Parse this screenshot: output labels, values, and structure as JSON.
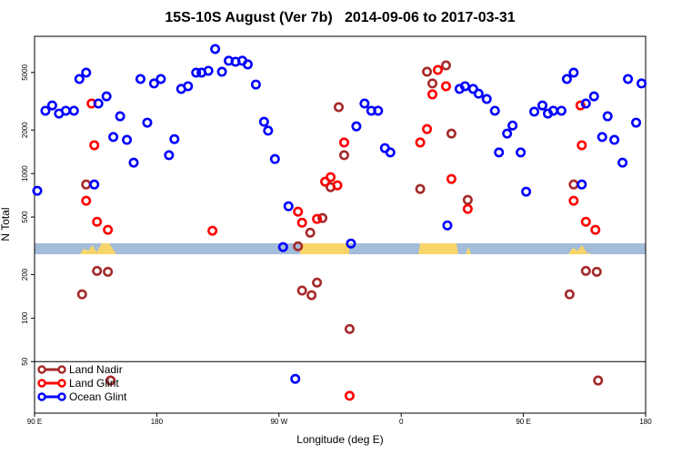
{
  "chart_data": {
    "type": "scatter",
    "title": "15S-10S August (Ver 7b)   2014-09-06 to 2017-03-31",
    "xlabel": "Longitude (deg E)",
    "ylabel": "N Total",
    "xlim": [
      90,
      540
    ],
    "xticks": [
      {
        "value": 90,
        "label": "90 E"
      },
      180,
      {
        "value": 270,
        "label": "90 W"
      },
      {
        "value": 360,
        "label": "0"
      },
      {
        "value": 450,
        "label": "90 E"
      },
      {
        "value": 540,
        "label": "180"
      }
    ],
    "ylim": [
      22,
      8900
    ],
    "yscale": "log",
    "yticks": [
      50,
      100,
      200,
      500,
      1000,
      2000,
      5000
    ],
    "legend": "lower left",
    "series": [
      {
        "name": "Land Nadir",
        "color": "#a52a2a",
        "x": [
          125,
          128,
          136,
          144,
          146,
          284,
          287,
          293,
          294,
          298,
          302,
          308,
          314,
          318,
          322,
          374,
          379,
          383,
          393,
          397,
          409,
          484,
          487,
          496,
          504,
          505
        ],
        "values": [
          146,
          840,
          212,
          209,
          37,
          314,
          155,
          390,
          144,
          176,
          492,
          805,
          2880,
          1340,
          84,
          782,
          5060,
          4200,
          5600,
          1890,
          657,
          146,
          840,
          212,
          209,
          37
        ]
      },
      {
        "name": "Land Glint",
        "color": "#ff0000",
        "x": [
          128,
          132,
          134,
          136,
          144,
          221,
          284,
          287,
          298,
          304,
          308,
          313,
          318,
          322,
          374,
          379,
          383,
          387,
          393,
          397,
          409,
          487,
          492,
          493,
          496,
          503
        ],
        "values": [
          648,
          3050,
          1570,
          464,
          408,
          402,
          545,
          457,
          485,
          878,
          944,
          829,
          1640,
          29,
          1640,
          2030,
          3530,
          5210,
          4020,
          917,
          569,
          648,
          2960,
          1570,
          464,
          408
        ]
      },
      {
        "name": "Ocean Glint",
        "color": "#0000ff",
        "x": [
          92,
          98,
          103,
          108,
          113,
          119,
          123,
          128,
          134,
          137,
          143,
          148,
          153,
          158,
          163,
          168,
          173,
          178,
          183,
          189,
          193,
          198,
          203,
          209,
          213,
          218,
          223,
          228,
          233,
          238,
          243,
          247,
          253,
          259,
          262,
          267,
          273,
          277,
          282,
          323,
          327,
          333,
          338,
          343,
          348,
          352,
          394,
          403,
          407,
          413,
          417,
          423,
          429,
          432,
          438,
          442,
          448,
          452,
          458,
          464,
          468,
          472,
          478,
          482,
          487,
          493,
          496,
          502,
          508,
          512,
          517,
          523,
          527,
          533,
          537
        ],
        "values": [
          760,
          2720,
          2960,
          2600,
          2720,
          2720,
          4510,
          4990,
          840,
          3050,
          3420,
          1790,
          2490,
          1710,
          1190,
          4510,
          2250,
          4200,
          4510,
          1340,
          1730,
          3850,
          4020,
          4990,
          4990,
          5140,
          7270,
          5060,
          6030,
          5940,
          6030,
          5690,
          4130,
          2280,
          1980,
          1260,
          310,
          594,
          38,
          328,
          2120,
          3050,
          2720,
          2720,
          1500,
          1400,
          438,
          3850,
          4020,
          3850,
          3570,
          3280,
          2720,
          1400,
          1890,
          2150,
          1400,
          749,
          2680,
          2960,
          2600,
          2720,
          2720,
          4510,
          4990,
          840,
          3050,
          3420,
          1790,
          2490,
          1710,
          1190,
          4510,
          2250,
          4200
        ]
      }
    ]
  }
}
